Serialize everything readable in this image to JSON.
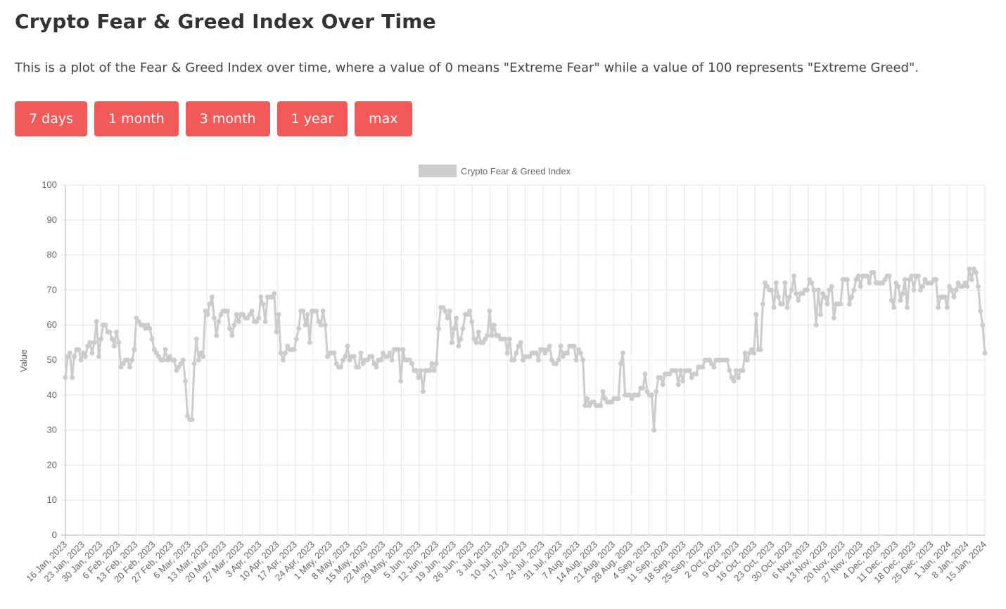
{
  "header": {
    "title": "Crypto Fear & Greed Index Over Time",
    "description": "This is a plot of the Fear & Greed Index over time, where a value of 0 means \"Extreme Fear\" while a value of 100 represents \"Extreme Greed\"."
  },
  "buttons": [
    "7 days",
    "1 month",
    "3 month",
    "1 year",
    "max"
  ],
  "colors": {
    "button": "#f25a5a",
    "series": "#cccccc",
    "grid": "#e6e6e6"
  },
  "chart_data": {
    "type": "line",
    "legend": "top-center",
    "grid": true,
    "ylabel": "Value",
    "ylim": [
      0,
      100
    ],
    "yticks": [
      0,
      10,
      20,
      30,
      40,
      50,
      60,
      70,
      80,
      90,
      100
    ],
    "x_tick_labels": [
      "16 Jan, 2023",
      "23 Jan, 2023",
      "30 Jan, 2023",
      "6 Feb, 2023",
      "13 Feb, 2023",
      "20 Feb, 2023",
      "27 Feb, 2023",
      "6 Mar, 2023",
      "13 Mar, 2023",
      "20 Mar, 2023",
      "27 Mar, 2023",
      "3 Apr, 2023",
      "10 Apr, 2023",
      "17 Apr, 2023",
      "24 Apr, 2023",
      "1 May, 2023",
      "8 May, 2023",
      "15 May, 2023",
      "22 May, 2023",
      "29 May, 2023",
      "5 Jun, 2023",
      "12 Jun, 2023",
      "19 Jun, 2023",
      "26 Jun, 2023",
      "3 Jul, 2023",
      "10 Jul, 2023",
      "17 Jul, 2023",
      "24 Jul, 2023",
      "31 Jul, 2023",
      "7 Aug, 2023",
      "14 Aug, 2023",
      "21 Aug, 2023",
      "28 Aug, 2023",
      "4 Sep, 2023",
      "11 Sep, 2023",
      "18 Sep, 2023",
      "25 Sep, 2023",
      "2 Oct, 2023",
      "9 Oct, 2023",
      "16 Oct, 2023",
      "23 Oct, 2023",
      "30 Oct, 2023",
      "6 Nov, 2023",
      "13 Nov, 2023",
      "20 Nov, 2023",
      "27 Nov, 2023",
      "4 Dec, 2023",
      "11 Dec, 2023",
      "18 Dec, 2023",
      "25 Dec, 2023",
      "1 Jan, 2024",
      "8 Jan, 2024",
      "15 Jan, 2024"
    ],
    "series": [
      {
        "name": "Crypto Fear & Greed Index",
        "values": [
          45,
          51,
          52,
          45,
          51,
          53,
          53,
          50,
          52,
          51,
          54,
          55,
          52,
          55,
          61,
          51,
          56,
          60,
          60,
          58,
          58,
          56,
          54,
          58,
          55,
          48,
          49,
          50,
          50,
          48,
          50,
          53,
          62,
          61,
          60,
          60,
          59,
          60,
          59,
          56,
          53,
          52,
          51,
          50,
          50,
          53,
          50,
          51,
          50,
          50,
          47,
          48,
          49,
          50,
          44,
          34,
          33,
          33,
          49,
          56,
          50,
          52,
          51,
          64,
          63,
          66,
          68,
          62,
          57,
          61,
          63,
          64,
          64,
          64,
          59,
          57,
          60,
          63,
          61,
          63,
          63,
          62,
          62,
          63,
          64,
          61,
          61,
          62,
          68,
          66,
          61,
          68,
          68,
          68,
          69,
          58,
          63,
          52,
          50,
          52,
          54,
          53,
          53,
          53,
          56,
          59,
          64,
          64,
          60,
          63,
          55,
          64,
          64,
          64,
          61,
          60,
          64,
          60,
          51,
          52,
          52,
          52,
          49,
          48,
          48,
          50,
          51,
          54,
          50,
          51,
          51,
          48,
          48,
          52,
          49,
          50,
          50,
          51,
          51,
          49,
          48,
          50,
          50,
          52,
          51,
          51,
          52,
          50,
          53,
          53,
          53,
          44,
          53,
          50,
          50,
          50,
          49,
          47,
          47,
          45,
          47,
          41,
          47,
          47,
          47,
          49,
          47,
          49,
          59,
          65,
          65,
          64,
          62,
          64,
          55,
          59,
          62,
          54,
          56,
          59,
          63,
          63,
          64,
          61,
          56,
          55,
          58,
          55,
          55,
          56,
          57,
          64,
          57,
          60,
          57,
          57,
          56,
          56,
          56,
          52,
          56,
          50,
          50,
          52,
          54,
          55,
          50,
          51,
          51,
          51,
          52,
          52,
          52,
          50,
          53,
          53,
          52,
          53,
          54,
          50,
          49,
          49,
          50,
          54,
          51,
          52,
          52,
          54,
          54,
          54,
          50,
          53,
          52,
          50,
          37,
          39,
          37,
          38,
          38,
          37,
          37,
          37,
          41,
          39,
          38,
          38,
          38,
          39,
          39,
          39,
          49,
          52,
          40,
          40,
          40,
          39,
          40,
          40,
          40,
          42,
          42,
          46,
          41,
          40,
          40,
          30,
          41,
          45,
          45,
          43,
          46,
          46,
          46,
          47,
          47,
          47,
          43,
          47,
          44,
          47,
          47,
          47,
          45,
          46,
          46,
          48,
          48,
          48,
          50,
          50,
          50,
          49,
          48,
          50,
          50,
          50,
          50,
          50,
          50,
          47,
          45,
          44,
          47,
          45,
          47,
          47,
          52,
          50,
          52,
          53,
          52,
          63,
          53,
          53,
          66,
          72,
          71,
          70,
          70,
          65,
          72,
          68,
          66,
          66,
          72,
          65,
          68,
          70,
          74,
          69,
          67,
          69,
          69,
          70,
          70,
          73,
          72,
          70,
          60,
          70,
          63,
          69,
          68,
          66,
          70,
          71,
          62,
          66,
          66,
          66,
          73,
          73,
          73,
          66,
          68,
          70,
          73,
          74,
          71,
          74,
          74,
          74,
          72,
          75,
          75,
          72,
          72,
          72,
          72,
          73,
          74,
          74,
          67,
          65,
          72,
          71,
          67,
          69,
          73,
          65,
          73,
          74,
          70,
          74,
          74,
          70,
          71,
          73,
          72,
          72,
          72,
          73,
          73,
          65,
          68,
          68,
          68,
          65,
          71,
          70,
          68,
          70,
          72,
          71,
          71,
          72,
          71,
          76,
          73,
          76,
          75,
          71,
          64,
          60,
          52
        ]
      }
    ]
  }
}
